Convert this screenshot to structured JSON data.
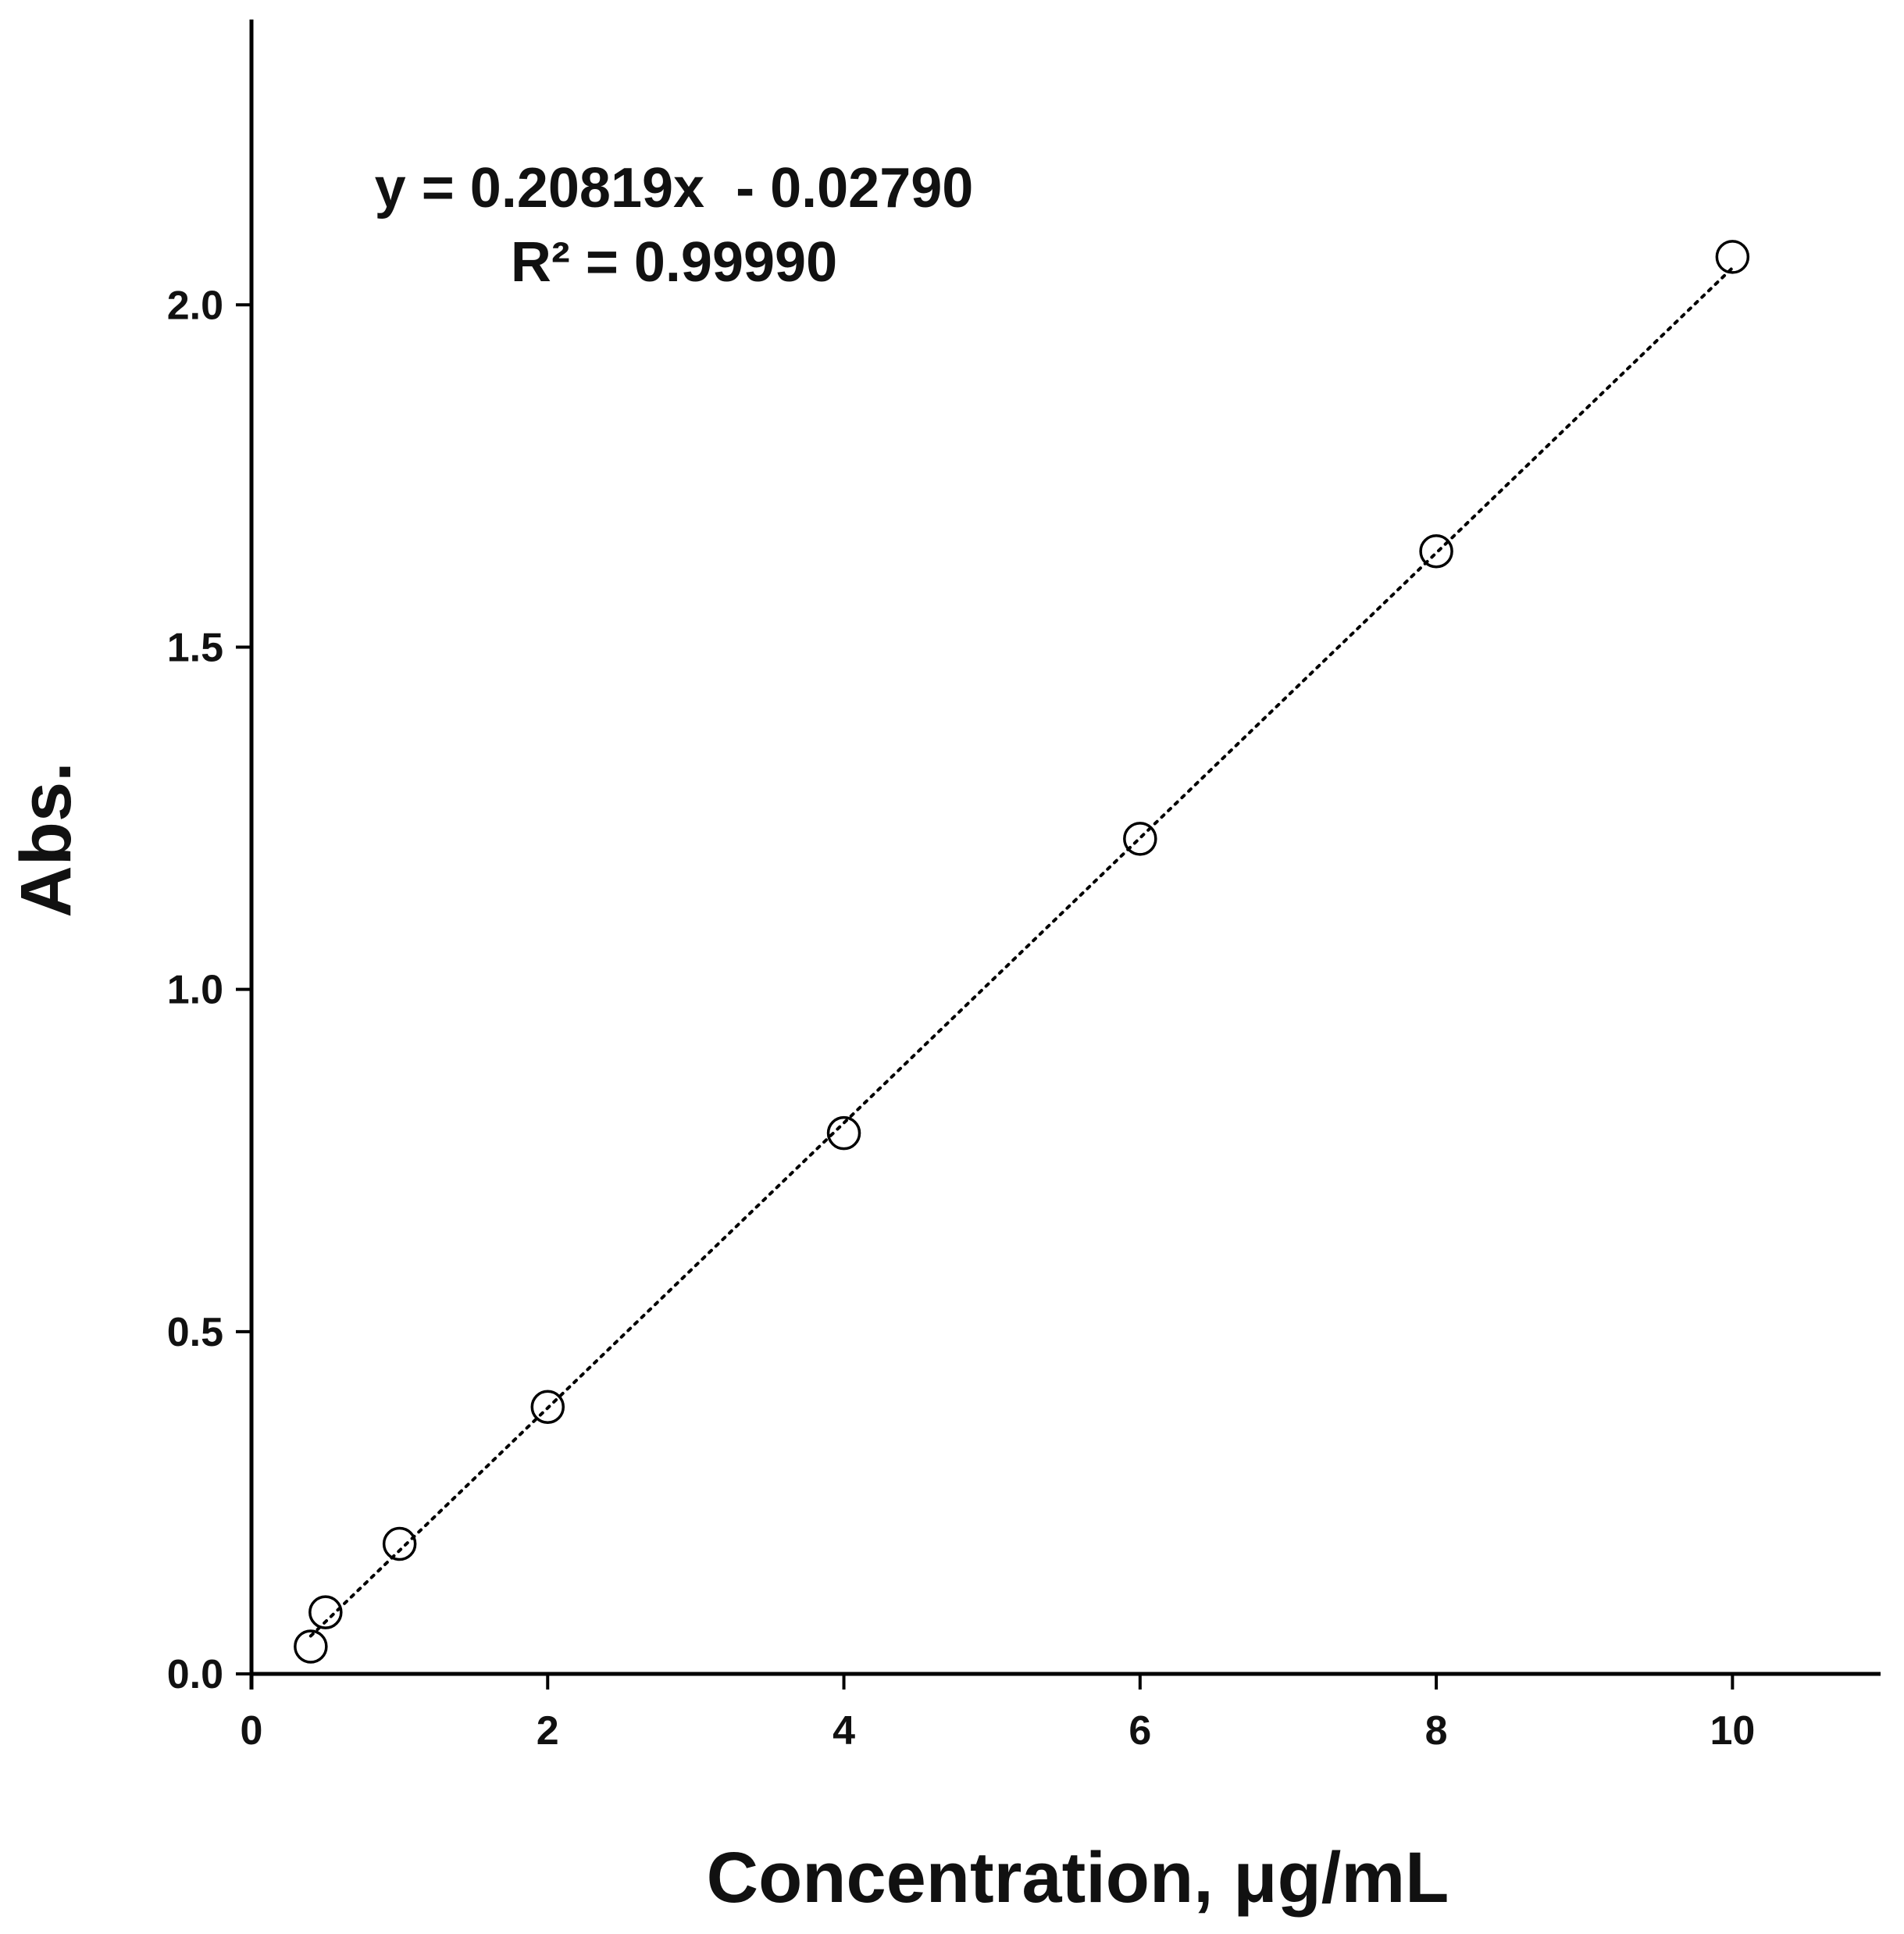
{
  "chart_data": {
    "type": "scatter",
    "title": "",
    "xlabel": "Concentration, μg/mL",
    "ylabel": "Abs.",
    "xlim": [
      0,
      11
    ],
    "ylim": [
      0,
      2.2
    ],
    "xticks": [
      0,
      2,
      4,
      6,
      8,
      10
    ],
    "xtick_labels": [
      "0",
      "2",
      "4",
      "6",
      "8",
      "10"
    ],
    "yticks": [
      0,
      0.5,
      1,
      1.5,
      2
    ],
    "ytick_labels": [
      "0.0",
      "0.5",
      "1.0",
      "1.5",
      "2.0"
    ],
    "grid": false,
    "legend": null,
    "marker": "open-circle",
    "series": [
      {
        "x": [
          0.4,
          0.5,
          1,
          2,
          4,
          6,
          8,
          10
        ],
        "y": [
          0.04,
          0.09,
          0.19,
          0.39,
          0.79,
          1.22,
          1.64,
          2.07
        ]
      }
    ],
    "trendline": {
      "style": "dotted",
      "slope": 0.20819,
      "intercept": -0.0279,
      "x_range": [
        0.4,
        10
      ]
    },
    "annotations": {
      "equation": "y = 0.20819x  - 0.02790",
      "r_squared": "R² = 0.99990"
    }
  },
  "colors": {
    "axis": "#000000",
    "marker_stroke": "#000000",
    "marker_fill": "#ffffff",
    "trendline": "#000000"
  }
}
